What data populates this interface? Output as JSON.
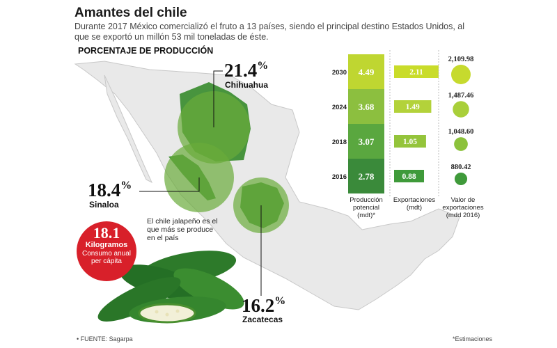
{
  "header": {
    "title": "Amantes del chile",
    "subtitle": "Durante 2017 México comercializó el fruto a 13 países, siendo el principal destino Estados Unidos, al que se exportó un millón 53 mil toneladas de éste."
  },
  "map_section": {
    "title": "PORCENTAJE DE PRODUCCIÓN",
    "states": [
      {
        "name": "Chihuahua",
        "percent": "21.4",
        "symbol": "%"
      },
      {
        "name": "Sinaloa",
        "percent": "18.4",
        "symbol": "%"
      },
      {
        "name": "Zacatecas",
        "percent": "16.2",
        "symbol": "%"
      }
    ]
  },
  "callout": {
    "number": "18.1",
    "unit": "Kilogramos",
    "description": "Consumo anual per cápita"
  },
  "note": "El chile jalapeño es el que más se produce en el país",
  "chart_data": {
    "type": "table",
    "years": [
      "2030",
      "2024",
      "2018",
      "2016"
    ],
    "series": [
      {
        "name": "Producción potencial (mdt)*",
        "values": [
          "4.49",
          "3.68",
          "3.07",
          "2.78"
        ]
      },
      {
        "name": "Exportaciones (mdt)",
        "values": [
          "2.11",
          "1.49",
          "1.05",
          "0.88"
        ]
      },
      {
        "name": "Valor de exportaciones (mdd 2016)",
        "values": [
          "2,109.98",
          "1,487.46",
          "1,048.60",
          "880.42"
        ]
      }
    ],
    "column_labels": [
      "Producción potencial (mdt)*",
      "Exportaciones (mdt)",
      "Valor de exportaciones (mdd 2016)"
    ]
  },
  "footer": {
    "source": "• FUENTE: Sagarpa",
    "note": "*Estimaciones"
  },
  "colors": {
    "production": [
      "#bfd631",
      "#8cbf3f",
      "#5aa73f",
      "#3a8a3a"
    ],
    "exports": [
      "#c9dc2a",
      "#b3d23a",
      "#94c43b",
      "#3f9a3a"
    ],
    "circles": [
      "#c6da2e",
      "#a9cf3a",
      "#8cc23c",
      "#3f9a3a"
    ],
    "map_circle": "#5a9e3a",
    "badge": "#d8202a"
  }
}
